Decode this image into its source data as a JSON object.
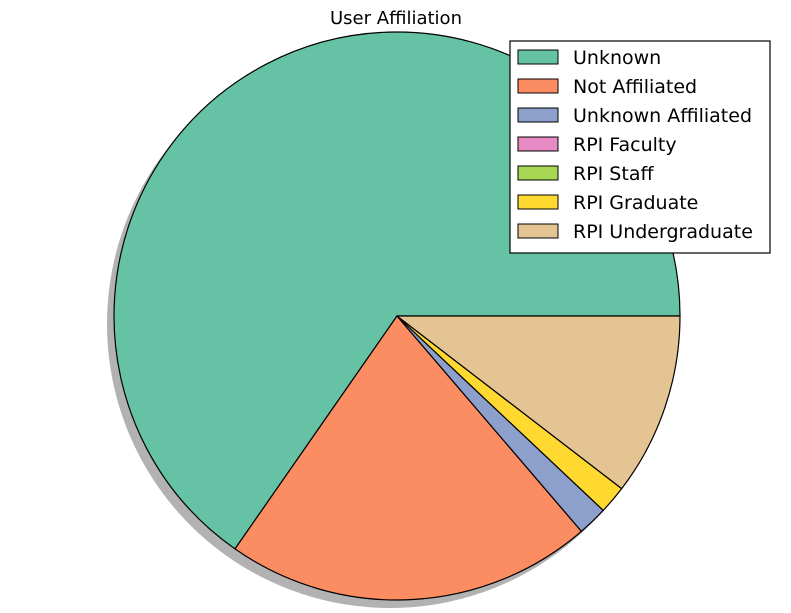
{
  "chart_data": {
    "type": "pie",
    "title": "User Affiliation",
    "legend_position": "top-right",
    "shadow": true,
    "start_angle_deg": 0,
    "direction": "counterclockwise",
    "slices": [
      {
        "label": "Unknown",
        "value": 65.3,
        "color": "#66c2a5"
      },
      {
        "label": "Not Affiliated",
        "value": 21.0,
        "color": "#fc8d62"
      },
      {
        "label": "Unknown Affiliated",
        "value": 1.7,
        "color": "#8da0cb"
      },
      {
        "label": "RPI Faculty",
        "value": 0.0,
        "color": "#e78ac3"
      },
      {
        "label": "RPI Staff",
        "value": 0.0,
        "color": "#a6d854"
      },
      {
        "label": "RPI Graduate",
        "value": 1.6,
        "color": "#ffd92f"
      },
      {
        "label": "RPI Undergraduate",
        "value": 10.4,
        "color": "#e5c494"
      }
    ]
  }
}
